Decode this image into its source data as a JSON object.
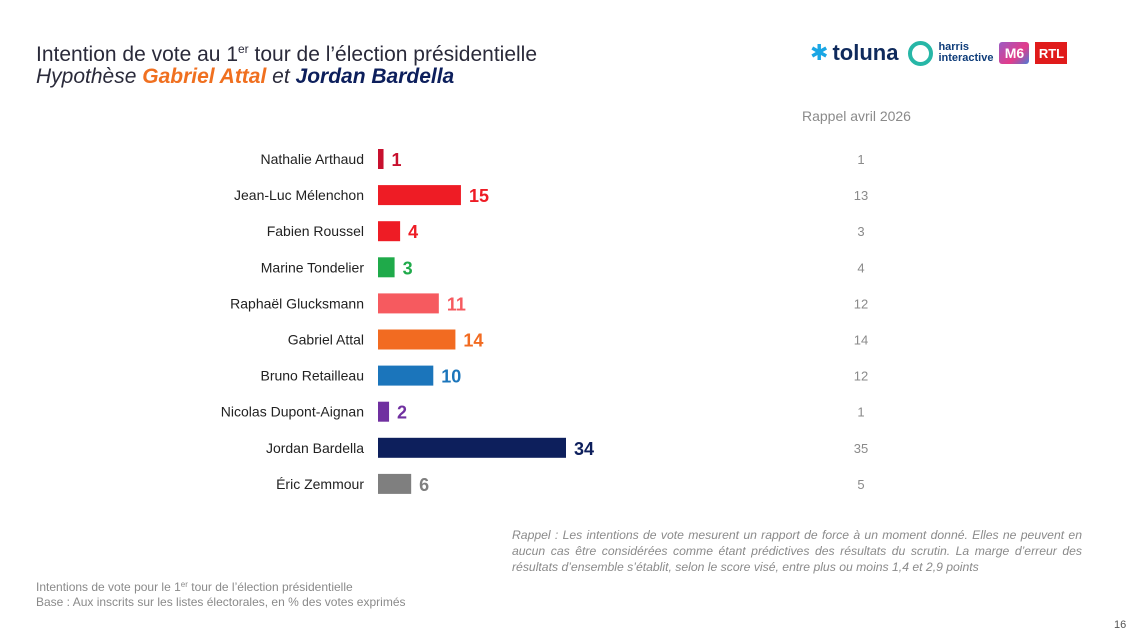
{
  "header": {
    "title_pre": "Intention de vote au 1",
    "title_sup": "er",
    "title_post": " tour de l’élection présidentielle",
    "subtitle_pre": "Hypothèse ",
    "subtitle_name1": "Gabriel Attal",
    "subtitle_mid": " et ",
    "subtitle_name2": "Jordan Bardella"
  },
  "logos": {
    "toluna": "toluna",
    "harris_line1": "harris",
    "harris_line2": "interactive",
    "m6": "M6",
    "rtl": "RTL",
    "toluna_icon": "asterisk-icon",
    "harris_icon": "ring-icon"
  },
  "chart_data": {
    "type": "bar",
    "orientation": "horizontal",
    "categories": [
      "Nathalie Arthaud",
      "Jean-Luc Mélenchon",
      "Fabien Roussel",
      "Marine Tondelier",
      "Raphaël Glucksmann",
      "Gabriel Attal",
      "Bruno Retailleau",
      "Nicolas Dupont-Aignan",
      "Jordan Bardella",
      "Éric Zemmour"
    ],
    "values": [
      1,
      15,
      4,
      3,
      11,
      14,
      10,
      2,
      34,
      6
    ],
    "colors": [
      "#c8102e",
      "#ee1c25",
      "#ee1c25",
      "#1faa4a",
      "#f65a5f",
      "#f26b21",
      "#1b75bb",
      "#7030a0",
      "#0d1f5c",
      "#7f7f7f"
    ],
    "rappel_header": "Rappel avril 2026",
    "rappel_values": [
      1,
      13,
      3,
      4,
      12,
      14,
      12,
      1,
      35,
      5
    ],
    "xlim": [
      0,
      34
    ]
  },
  "footer": {
    "rappel_note": "Rappel : Les intentions de vote mesurent un rapport de force à un moment donné. Elles ne peuvent en aucun cas être considérées comme étant prédictives des résultats du scrutin. La marge d’erreur des résultats d’ensemble s’établit, selon le score visé, entre plus ou moins 1,4 et 2,9 points",
    "base_line1_pre": "Intentions de vote pour le 1",
    "base_line1_sup": "er",
    "base_line1_post": " tour de l’élection présidentielle",
    "base_line2": "Base : Aux inscrits sur les listes électorales, en % des votes exprimés",
    "page_number": "16"
  }
}
